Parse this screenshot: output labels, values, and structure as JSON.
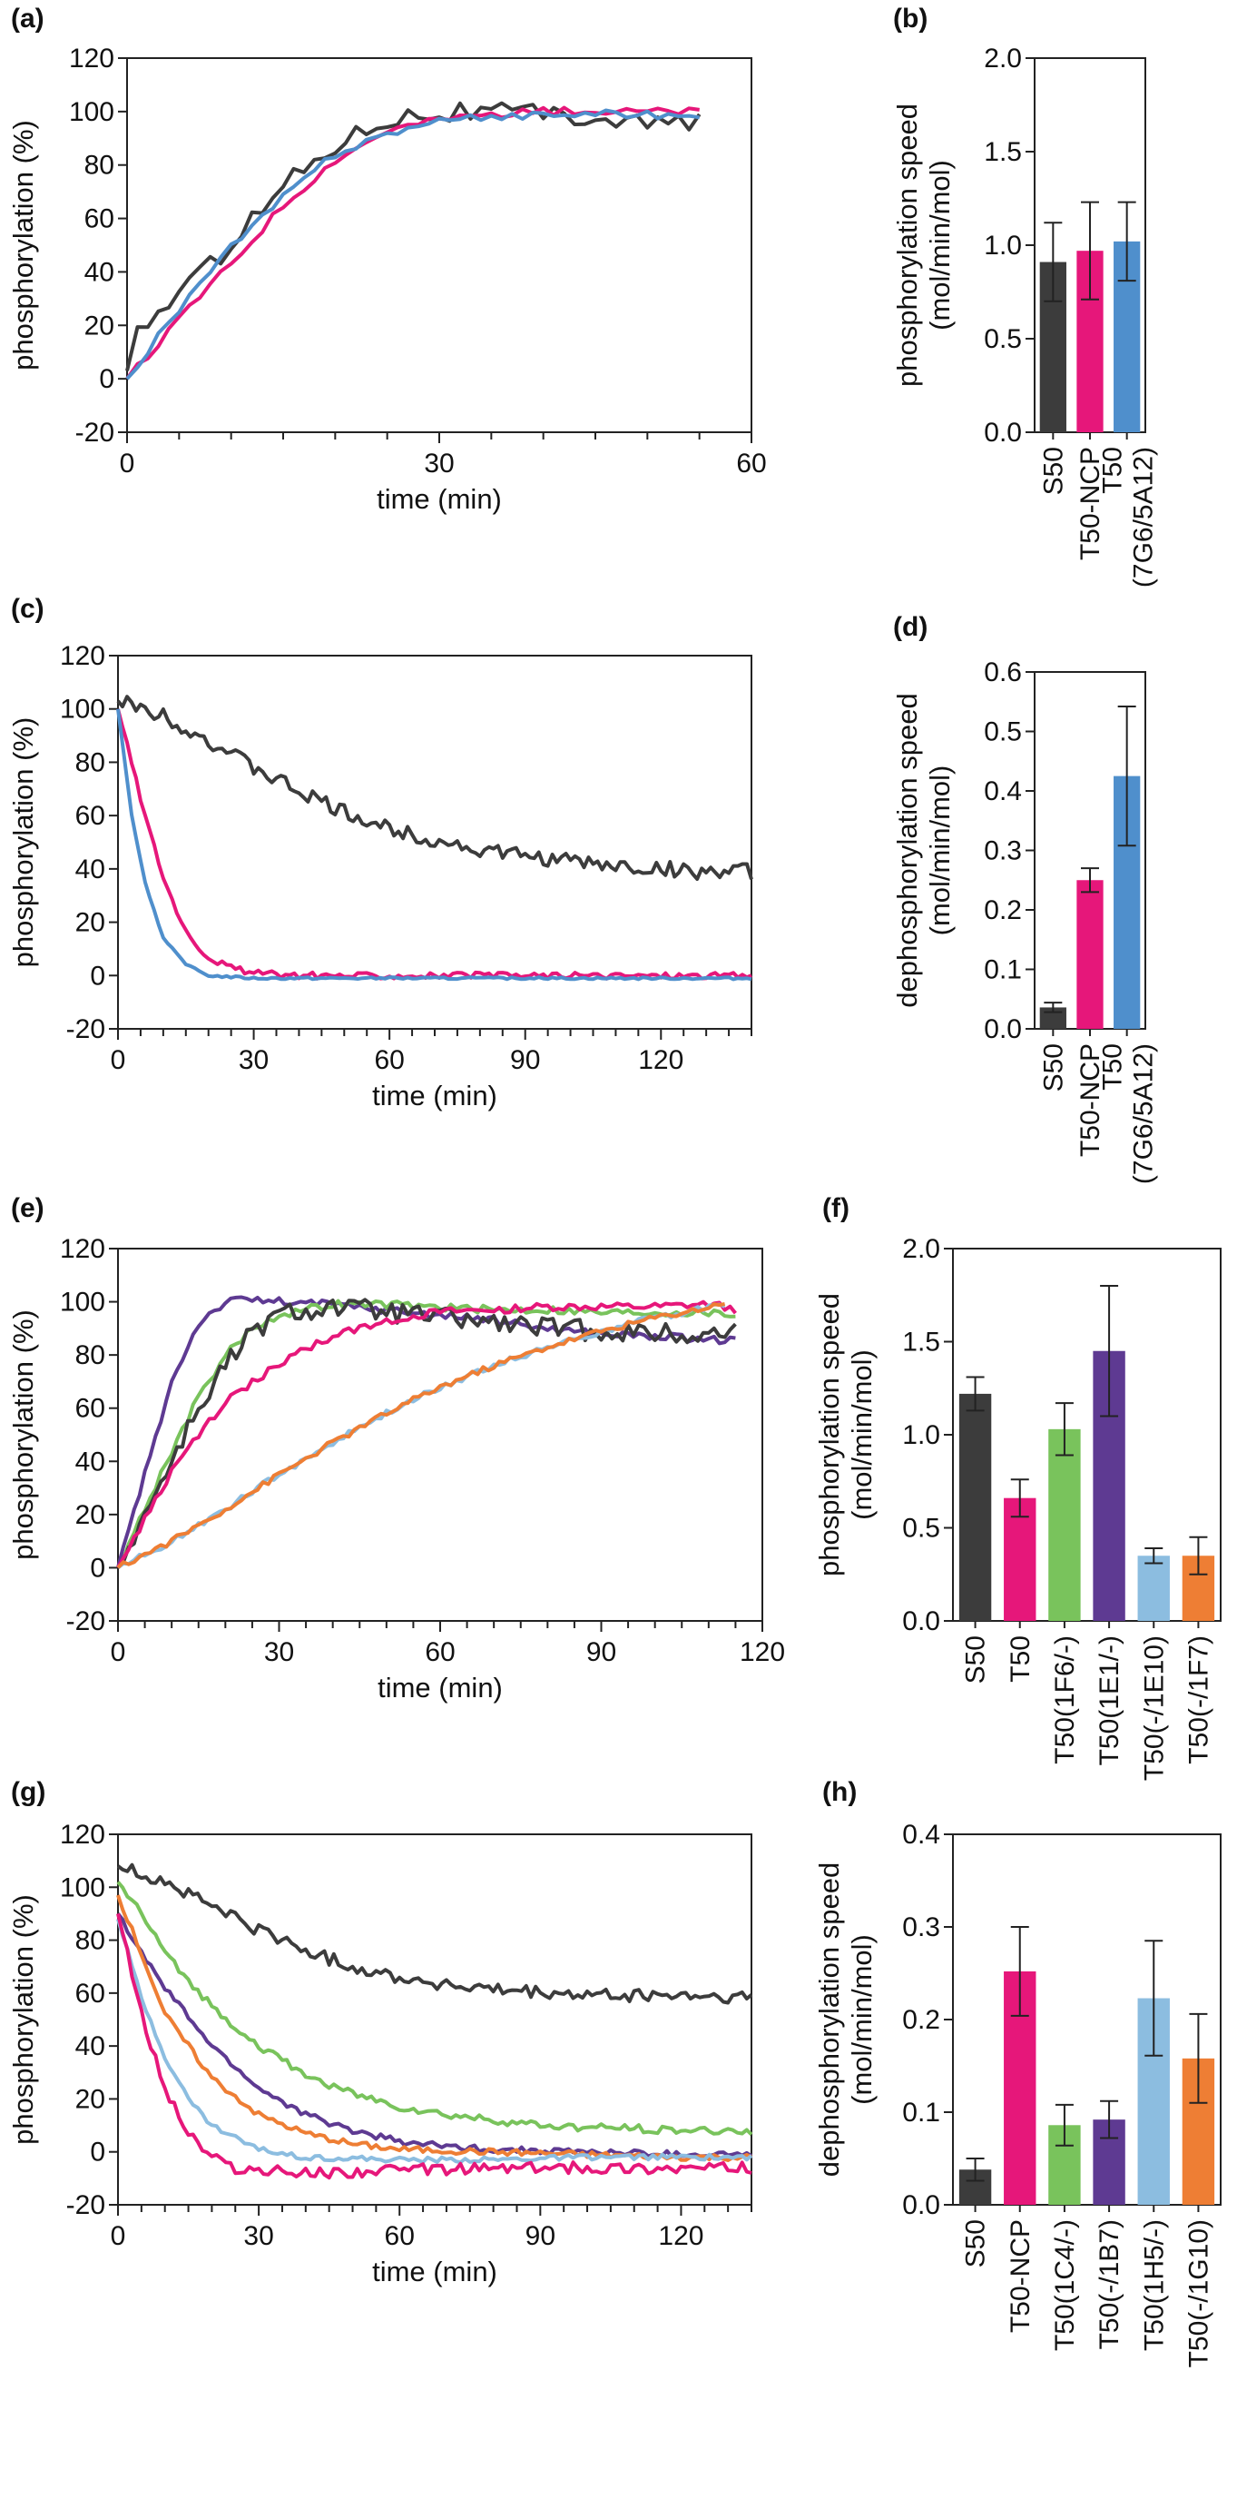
{
  "colors": {
    "S50": "#3c3c3c",
    "NCP": "#e6177a",
    "blue": "#4f8fcc",
    "green": "#79c35c",
    "purple": "#5e3a92",
    "lightblue": "#8cbde0",
    "orange": "#ee7e34"
  },
  "chart_data": [
    {
      "panel": "(a)",
      "type": "line",
      "xlabel": "time (min)",
      "ylabel": "phosphorylation (%)",
      "xlim": [
        0,
        60
      ],
      "ylim": [
        -20,
        120
      ],
      "xticks": [
        "0",
        "30",
        "60"
      ],
      "yticks": [
        "-20",
        "0",
        "20",
        "40",
        "60",
        "80",
        "100",
        "120"
      ],
      "series": [
        {
          "color": "#3c3c3c",
          "x": [
            0,
            1,
            3,
            5,
            8,
            10,
            13,
            16,
            20,
            25,
            30,
            35,
            40,
            45,
            50,
            55
          ],
          "y": [
            3,
            18,
            25,
            33,
            42,
            52,
            64,
            76,
            88,
            98,
            100,
            100,
            99,
            98,
            96,
            95
          ],
          "noise": 4
        },
        {
          "color": "#e6177a",
          "x": [
            0,
            3,
            6,
            10,
            15,
            20,
            25,
            30,
            35,
            40,
            45,
            50,
            55
          ],
          "y": [
            0,
            13,
            27,
            43,
            65,
            82,
            93,
            97,
            99,
            100,
            100,
            100,
            100
          ],
          "noise": 1.5
        },
        {
          "color": "#4f8fcc",
          "x": [
            0,
            3,
            6,
            10,
            15,
            20,
            25,
            30,
            35,
            40,
            45,
            50,
            55
          ],
          "y": [
            0,
            16,
            31,
            49,
            68,
            84,
            92,
            96,
            98,
            99,
            99,
            99,
            98
          ],
          "noise": 1.5
        }
      ]
    },
    {
      "panel": "(b)",
      "type": "bar",
      "ylabel": "phosphorylation speed\n(mol/min/mol)",
      "ylim": [
        0,
        2.0
      ],
      "yticks": [
        "0.0",
        "0.5",
        "1.0",
        "1.5",
        "2.0"
      ],
      "categories": [
        "S50",
        "T50-NCP",
        "T50\n(7G6/5A12)"
      ],
      "values": [
        0.91,
        0.97,
        1.02
      ],
      "errors": [
        0.21,
        0.26,
        0.21
      ],
      "colors": [
        "#3c3c3c",
        "#e6177a",
        "#4f8fcc"
      ]
    },
    {
      "panel": "(c)",
      "type": "line",
      "xlabel": "time (min)",
      "ylabel": "phosphorylation (%)",
      "xlim": [
        0,
        140
      ],
      "ylim": [
        -20,
        120
      ],
      "xticks": [
        "0",
        "30",
        "60",
        "90",
        "120"
      ],
      "yticks": [
        "-20",
        "0",
        "20",
        "40",
        "60",
        "80",
        "100",
        "120"
      ],
      "series": [
        {
          "color": "#3c3c3c",
          "x": [
            0,
            10,
            20,
            30,
            40,
            50,
            60,
            70,
            80,
            90,
            100,
            110,
            120,
            130,
            140
          ],
          "y": [
            103,
            98,
            88,
            78,
            69,
            61,
            55,
            51,
            47,
            45,
            43,
            41,
            40,
            39,
            39
          ],
          "noise": 3
        },
        {
          "color": "#e6177a",
          "x": [
            0,
            3,
            6,
            10,
            15,
            20,
            25,
            30,
            40,
            60,
            80,
            100,
            120,
            140
          ],
          "y": [
            100,
            80,
            60,
            37,
            16,
            7,
            3,
            1,
            0,
            0,
            0,
            0,
            0,
            0
          ],
          "noise": 1.2
        },
        {
          "color": "#4f8fcc",
          "x": [
            0,
            3,
            6,
            10,
            15,
            20,
            30,
            40,
            60,
            80,
            100,
            120,
            140
          ],
          "y": [
            100,
            60,
            35,
            14,
            4,
            0,
            -1,
            -1,
            -1,
            -1,
            -1,
            -1,
            -1
          ],
          "noise": 0.4
        }
      ]
    },
    {
      "panel": "(d)",
      "type": "bar",
      "ylabel": "dephosphorylation speed\n(mol/min/mol)",
      "ylim": [
        0,
        0.6
      ],
      "yticks": [
        "0.0",
        "0.1",
        "0.2",
        "0.3",
        "0.4",
        "0.5",
        "0.6"
      ],
      "categories": [
        "S50",
        "T50-NCP",
        "T50\n(7G6/5A12)"
      ],
      "values": [
        0.036,
        0.25,
        0.425
      ],
      "errors": [
        0.008,
        0.02,
        0.117
      ],
      "colors": [
        "#3c3c3c",
        "#e6177a",
        "#4f8fcc"
      ]
    },
    {
      "panel": "(e)",
      "type": "line",
      "xlabel": "time (min)",
      "ylabel": "phosphorylation (%)",
      "xlim": [
        0,
        120
      ],
      "ylim": [
        -20,
        120
      ],
      "xticks": [
        "0",
        "30",
        "60",
        "90",
        "120"
      ],
      "yticks": [
        "-20",
        "0",
        "20",
        "40",
        "60",
        "80",
        "100",
        "120"
      ],
      "series": [
        {
          "color": "#5e3a92",
          "x": [
            0,
            5,
            10,
            15,
            20,
            25,
            30,
            40,
            50,
            60,
            70,
            80,
            90,
            100,
            110,
            115
          ],
          "y": [
            0,
            35,
            70,
            92,
            100,
            101,
            100,
            99,
            97,
            95,
            93,
            90,
            88,
            87,
            86,
            85
          ],
          "noise": 1.5
        },
        {
          "color": "#79c35c",
          "x": [
            0,
            5,
            10,
            15,
            20,
            25,
            30,
            40,
            50,
            60,
            70,
            80,
            90,
            100,
            110,
            115
          ],
          "y": [
            0,
            22,
            44,
            64,
            80,
            90,
            95,
            99,
            99,
            98,
            97,
            97,
            96,
            96,
            96,
            95
          ],
          "noise": 1.5
        },
        {
          "color": "#3c3c3c",
          "x": [
            0,
            5,
            10,
            15,
            20,
            25,
            30,
            40,
            50,
            60,
            70,
            80,
            90,
            100,
            110,
            115
          ],
          "y": [
            0,
            20,
            40,
            60,
            76,
            88,
            95,
            98,
            96,
            94,
            92,
            90,
            89,
            88,
            87,
            90
          ],
          "noise": 4
        },
        {
          "color": "#e6177a",
          "x": [
            0,
            5,
            10,
            15,
            20,
            30,
            40,
            50,
            60,
            70,
            80,
            90,
            100,
            110,
            115
          ],
          "y": [
            0,
            18,
            36,
            50,
            62,
            77,
            87,
            93,
            96,
            97,
            98,
            98,
            98,
            99,
            97
          ],
          "noise": 1.5
        },
        {
          "color": "#8cbde0",
          "x": [
            0,
            10,
            20,
            30,
            40,
            50,
            60,
            70,
            80,
            90,
            100,
            110,
            113
          ],
          "y": [
            0,
            10,
            22,
            35,
            47,
            58,
            68,
            76,
            83,
            89,
            94,
            98,
            99
          ],
          "noise": 1.2
        },
        {
          "color": "#ee7e34",
          "x": [
            0,
            10,
            20,
            30,
            40,
            50,
            60,
            70,
            80,
            90,
            100,
            110,
            113
          ],
          "y": [
            0,
            10,
            22,
            35,
            47,
            58,
            68,
            76,
            83,
            89,
            94,
            98,
            100
          ],
          "noise": 1.2
        }
      ]
    },
    {
      "panel": "(f)",
      "type": "bar",
      "ylabel": "phosphorylation speed\n(mol/min/mol)",
      "ylim": [
        0,
        2.0
      ],
      "yticks": [
        "0.0",
        "0.5",
        "1.0",
        "1.5",
        "2.0"
      ],
      "categories": [
        "S50",
        "T50",
        "T50(1F6/-)",
        "T50(1E1/-)",
        "T50(-/1E10)",
        "T50(-/1F7)"
      ],
      "values": [
        1.22,
        0.66,
        1.03,
        1.45,
        0.35,
        0.35
      ],
      "errors": [
        0.09,
        0.1,
        0.14,
        0.35,
        0.04,
        0.1
      ],
      "colors": [
        "#3c3c3c",
        "#e6177a",
        "#79c35c",
        "#5e3a92",
        "#8cbde0",
        "#ee7e34"
      ]
    },
    {
      "panel": "(g)",
      "type": "line",
      "xlabel": "time (min)",
      "ylabel": "phosphorylation (%)",
      "xlim": [
        0,
        135
      ],
      "ylim": [
        -20,
        120
      ],
      "xticks": [
        "0",
        "30",
        "60",
        "90",
        "120"
      ],
      "yticks": [
        "-20",
        "0",
        "20",
        "40",
        "60",
        "80",
        "100",
        "120"
      ],
      "series": [
        {
          "color": "#3c3c3c",
          "x": [
            0,
            10,
            20,
            30,
            40,
            50,
            60,
            70,
            80,
            90,
            100,
            110,
            120,
            135
          ],
          "y": [
            108,
            102,
            93,
            84,
            76,
            70,
            66,
            63,
            61,
            60,
            59,
            59,
            59,
            58
          ],
          "noise": 2.5
        },
        {
          "color": "#79c35c",
          "x": [
            0,
            5,
            10,
            20,
            30,
            40,
            50,
            60,
            70,
            80,
            90,
            100,
            110,
            120,
            135
          ],
          "y": [
            102,
            90,
            75,
            55,
            40,
            29,
            22,
            17,
            14,
            12,
            10,
            9,
            9,
            8,
            8
          ],
          "noise": 1.5
        },
        {
          "color": "#5e3a92",
          "x": [
            0,
            5,
            10,
            20,
            30,
            40,
            50,
            60,
            70,
            80,
            100,
            120,
            135
          ],
          "y": [
            90,
            75,
            62,
            40,
            24,
            14,
            8,
            4,
            2,
            1,
            0,
            -1,
            -1
          ],
          "noise": 1.2
        },
        {
          "color": "#ee7e34",
          "x": [
            0,
            5,
            10,
            20,
            30,
            40,
            50,
            60,
            80,
            100,
            120,
            135
          ],
          "y": [
            97,
            75,
            52,
            28,
            14,
            7,
            3,
            1,
            0,
            -1,
            -2,
            -2
          ],
          "noise": 1.2
        },
        {
          "color": "#8cbde0",
          "x": [
            0,
            5,
            10,
            15,
            20,
            30,
            40,
            60,
            80,
            100,
            120,
            135
          ],
          "y": [
            88,
            58,
            36,
            20,
            10,
            1,
            -2,
            -3,
            -3,
            -2,
            -2,
            -2
          ],
          "noise": 1
        },
        {
          "color": "#e6177a",
          "x": [
            0,
            5,
            10,
            15,
            20,
            25,
            30,
            40,
            60,
            80,
            100,
            120,
            135
          ],
          "y": [
            90,
            52,
            24,
            7,
            -2,
            -6,
            -7,
            -8,
            -7,
            -6,
            -6,
            -6,
            -6
          ],
          "noise": 2.2
        }
      ]
    },
    {
      "panel": "(h)",
      "type": "bar",
      "ylabel": "dephosphorylation speed\n(mol/min/mol)",
      "ylim": [
        0,
        0.4
      ],
      "yticks": [
        "0.0",
        "0.1",
        "0.2",
        "0.3",
        "0.4"
      ],
      "categories": [
        "S50",
        "T50-NCP",
        "T50(1C4/-)",
        "T50(-/1B7)",
        "T50(1H5/-)",
        "T50(-/1G10)"
      ],
      "values": [
        0.038,
        0.252,
        0.086,
        0.092,
        0.223,
        0.158
      ],
      "errors": [
        0.012,
        0.048,
        0.022,
        0.02,
        0.062,
        0.048
      ],
      "colors": [
        "#3c3c3c",
        "#e6177a",
        "#79c35c",
        "#5e3a92",
        "#8cbde0",
        "#ee7e34"
      ]
    }
  ]
}
